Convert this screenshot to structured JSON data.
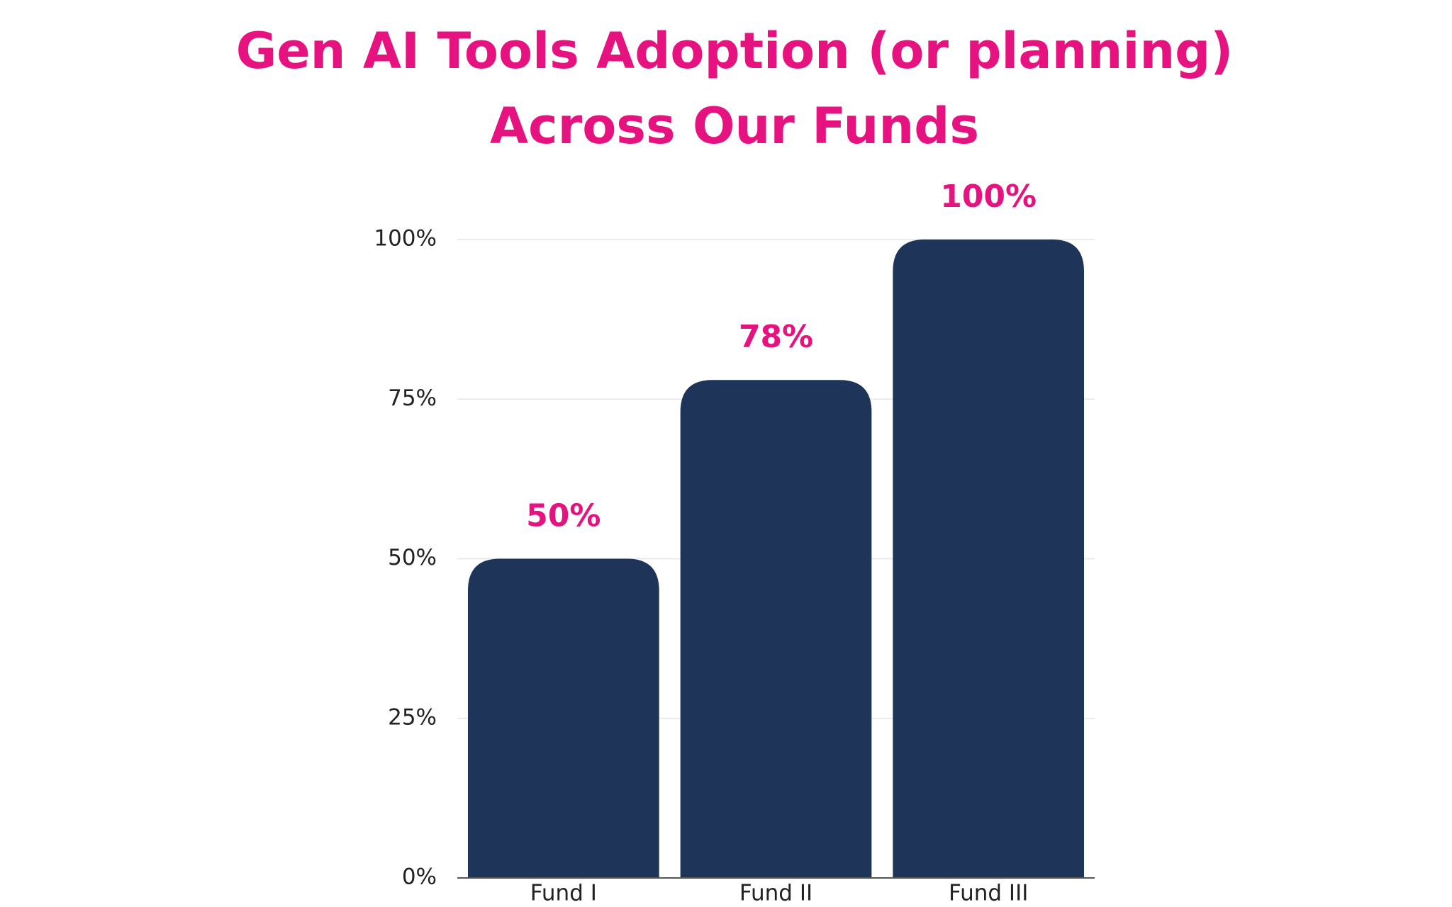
{
  "chart_data": {
    "type": "bar",
    "title": [
      "Gen AI Tools Adoption (or planning)",
      "Across Our Funds"
    ],
    "categories": [
      "Fund I",
      "Fund II",
      "Fund III"
    ],
    "values": [
      50,
      78,
      100
    ],
    "value_labels": [
      "50%",
      "78%",
      "100%"
    ],
    "color": "#1f3459",
    "label_color": "#e5127f",
    "ylim": [
      0,
      100
    ],
    "yticks": [
      {
        "value": 0,
        "label": "0%"
      },
      {
        "value": 25,
        "label": "25%"
      },
      {
        "value": 50,
        "label": "50%"
      },
      {
        "value": 75,
        "label": "75%"
      },
      {
        "value": 100,
        "label": "100%"
      }
    ],
    "grid": true
  }
}
